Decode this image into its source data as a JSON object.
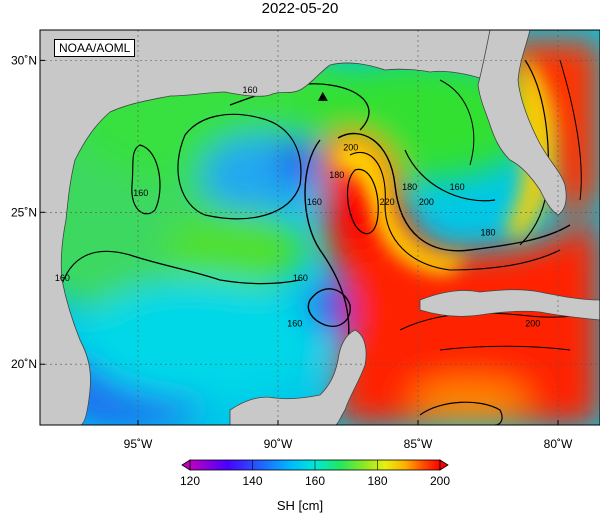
{
  "title": "2022-05-20",
  "credit": "NOAA/AOML",
  "axes": {
    "lon_ticks": [
      {
        "value": -95,
        "label": "95˚W"
      },
      {
        "value": -90,
        "label": "90˚W"
      },
      {
        "value": -85,
        "label": "85˚W"
      },
      {
        "value": -80,
        "label": "80˚W"
      }
    ],
    "lat_ticks": [
      {
        "value": 30,
        "label": "30˚N"
      },
      {
        "value": 25,
        "label": "25˚N"
      },
      {
        "value": 20,
        "label": "20˚N"
      }
    ],
    "lon_range": [
      -98.5,
      -78.5
    ],
    "lat_range": [
      18,
      31
    ]
  },
  "contour_labels": [
    {
      "text": "160",
      "lon": -91.0,
      "lat": 29.0
    },
    {
      "text": "160",
      "lon": -94.9,
      "lat": 25.6
    },
    {
      "text": "160",
      "lon": -97.7,
      "lat": 22.8
    },
    {
      "text": "160",
      "lon": -89.2,
      "lat": 22.8
    },
    {
      "text": "160",
      "lon": -89.4,
      "lat": 21.3
    },
    {
      "text": "160",
      "lon": -88.7,
      "lat": 25.3
    },
    {
      "text": "160",
      "lon": -83.6,
      "lat": 25.8
    },
    {
      "text": "180",
      "lon": -87.9,
      "lat": 26.2
    },
    {
      "text": "180",
      "lon": -85.3,
      "lat": 25.8
    },
    {
      "text": "180",
      "lon": -82.5,
      "lat": 24.3
    },
    {
      "text": "200",
      "lon": -87.4,
      "lat": 27.1
    },
    {
      "text": "200",
      "lon": -84.7,
      "lat": 25.3
    },
    {
      "text": "200",
      "lon": -80.9,
      "lat": 21.3
    },
    {
      "text": "220",
      "lon": -86.1,
      "lat": 25.3
    }
  ],
  "marker": {
    "lon": -88.4,
    "lat": 28.8
  },
  "colorbar": {
    "min": 120,
    "max": 200,
    "ticks": [
      "120",
      "140",
      "160",
      "180",
      "200"
    ],
    "unit": "SH [cm]",
    "colors": [
      "#c000c0",
      "#6a00ff",
      "#1f4fff",
      "#00a0ff",
      "#00e8e0",
      "#10e870",
      "#60e020",
      "#c8f020",
      "#ffee00",
      "#ffa000",
      "#ff4000",
      "#ff0000"
    ]
  },
  "colors": {
    "land": "#c8c8c8",
    "coast": "#444444"
  }
}
